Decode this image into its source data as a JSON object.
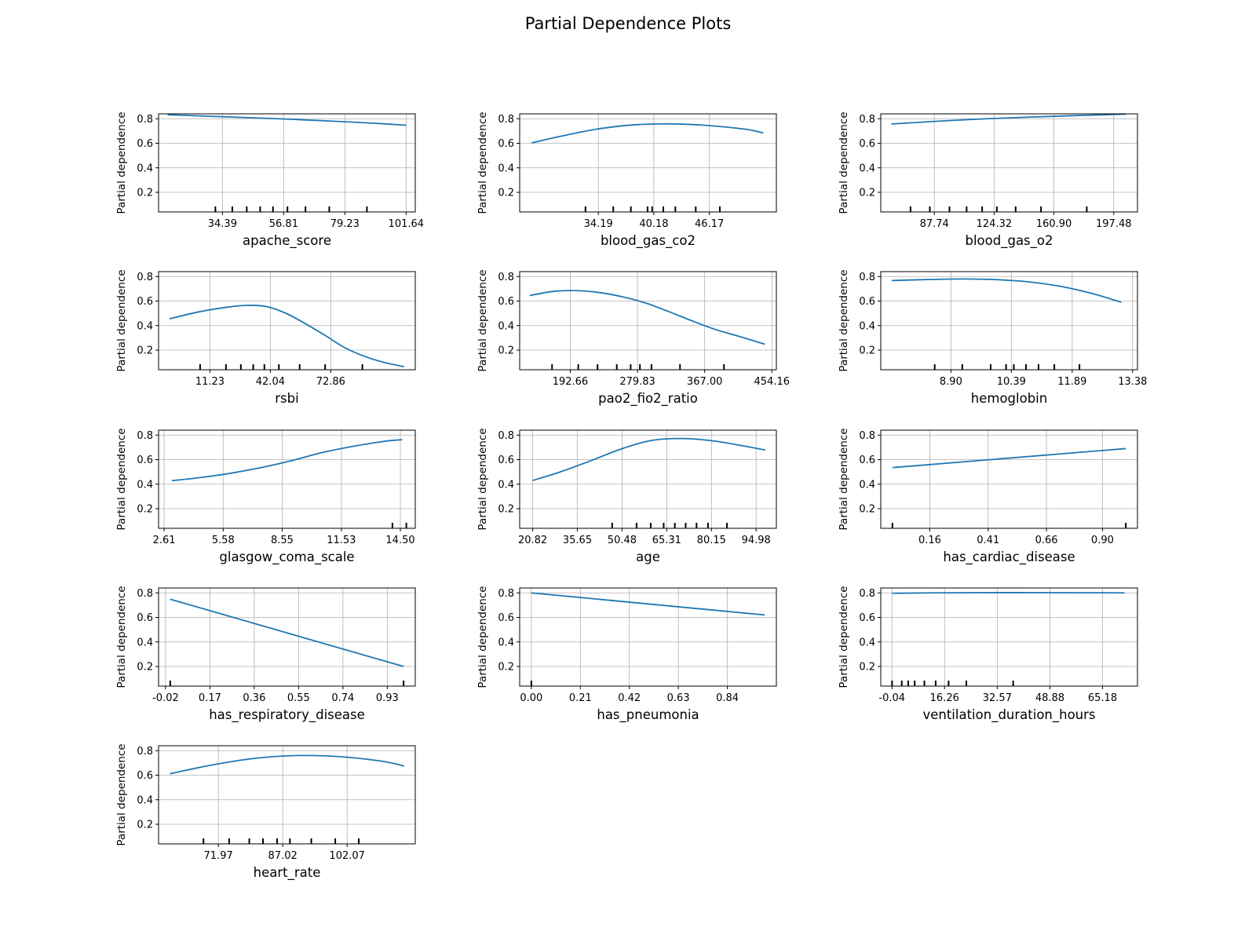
{
  "title": "Partial Dependence Plots",
  "ylabel": "Partial dependence",
  "colors": {
    "line": "#1f77b4",
    "grid": "#b0b0b0",
    "axis": "#000000"
  },
  "chart_data": [
    {
      "type": "line",
      "xlabel": "apache_score",
      "ylabel": "Partial dependence",
      "xlim": [
        11.0,
        105.0
      ],
      "ylim": [
        0.04,
        0.84
      ],
      "yticks": [
        0.2,
        0.4,
        0.6,
        0.8
      ],
      "xticks": [
        34.39,
        56.81,
        79.23,
        101.64
      ],
      "xtick_labels": [
        "34.39",
        "56.81",
        "79.23",
        "101.64"
      ],
      "deciles": [
        31.8,
        38.0,
        43.3,
        48.2,
        52.9,
        58.2,
        64.8,
        73.5,
        87.3
      ],
      "x": [
        14.3,
        30.0,
        45.0,
        60.0,
        75.0,
        90.0,
        101.64
      ],
      "y": [
        0.833,
        0.82,
        0.808,
        0.795,
        0.78,
        0.763,
        0.747
      ]
    },
    {
      "type": "line",
      "xlabel": "blood_gas_co2",
      "ylabel": "Partial dependence",
      "xlim": [
        25.7,
        53.4
      ],
      "ylim": [
        0.04,
        0.84
      ],
      "yticks": [
        0.2,
        0.4,
        0.6,
        0.8
      ],
      "xticks": [
        34.19,
        40.18,
        46.17
      ],
      "xtick_labels": [
        "34.19",
        "40.18",
        "46.17"
      ],
      "deciles": [
        32.8,
        35.8,
        37.7,
        39.5,
        40.0,
        41.2,
        42.5,
        44.7,
        47.3
      ],
      "x": [
        26.99,
        30.0,
        34.0,
        38.0,
        42.0,
        46.0,
        50.0,
        52.0
      ],
      "y": [
        0.603,
        0.655,
        0.715,
        0.75,
        0.758,
        0.745,
        0.715,
        0.685
      ]
    },
    {
      "type": "line",
      "xlabel": "blood_gas_o2",
      "ylabel": "Partial dependence",
      "xlim": [
        55.0,
        212.0
      ],
      "ylim": [
        0.04,
        0.84
      ],
      "yticks": [
        0.2,
        0.4,
        0.6,
        0.8
      ],
      "xticks": [
        87.74,
        124.32,
        160.9,
        197.48
      ],
      "xtick_labels": [
        "87.74",
        "124.32",
        "160.90",
        "197.48"
      ],
      "deciles": [
        73.2,
        85.0,
        97.0,
        107.5,
        117.0,
        126.0,
        137.5,
        153.0,
        181.0
      ],
      "x": [
        61.5,
        90.0,
        120.0,
        150.0,
        180.0,
        205.0
      ],
      "y": [
        0.757,
        0.78,
        0.8,
        0.815,
        0.828,
        0.838
      ]
    },
    {
      "type": "line",
      "xlabel": "rsbi",
      "ylabel": "Partial dependence",
      "xlim": [
        -15.0,
        116.0
      ],
      "ylim": [
        0.04,
        0.84
      ],
      "yticks": [
        0.2,
        0.4,
        0.6,
        0.8
      ],
      "xticks": [
        11.23,
        42.04,
        72.86
      ],
      "xtick_labels": [
        "11.23",
        "42.04",
        "72.86"
      ],
      "deciles": [
        6.2,
        19.4,
        27.0,
        33.3,
        39.0,
        46.4,
        57.0,
        70.0,
        89.0
      ],
      "x": [
        -9.4,
        5.0,
        20.0,
        30.0,
        40.0,
        50.0,
        60.0,
        70.0,
        80.0,
        90.0,
        100.0,
        110.3
      ],
      "y": [
        0.455,
        0.51,
        0.55,
        0.565,
        0.555,
        0.5,
        0.415,
        0.32,
        0.22,
        0.15,
        0.1,
        0.065
      ]
    },
    {
      "type": "line",
      "xlabel": "pao2_fio2_ratio",
      "ylabel": "Partial dependence",
      "xlim": [
        127.0,
        460.0
      ],
      "ylim": [
        0.04,
        0.84
      ],
      "yticks": [
        0.2,
        0.4,
        0.6,
        0.8
      ],
      "xticks": [
        192.66,
        279.83,
        367.0,
        454.16
      ],
      "xtick_labels": [
        "192.66",
        "279.83",
        "367.00",
        "454.16"
      ],
      "deciles": [
        169.0,
        203.0,
        228.0,
        253.0,
        271.0,
        283.0,
        298.0,
        335.0,
        392.0
      ],
      "x": [
        140.0,
        170.0,
        200.0,
        230.0,
        260.0,
        290.0,
        320.0,
        350.0,
        380.0,
        410.0,
        445.0
      ],
      "y": [
        0.645,
        0.678,
        0.685,
        0.67,
        0.635,
        0.585,
        0.515,
        0.44,
        0.37,
        0.315,
        0.248
      ]
    },
    {
      "type": "line",
      "xlabel": "hemoglobin",
      "ylabel": "Partial dependence",
      "xlim": [
        7.17,
        13.5
      ],
      "ylim": [
        0.04,
        0.84
      ],
      "yticks": [
        0.2,
        0.4,
        0.6,
        0.8
      ],
      "xticks": [
        8.9,
        10.39,
        11.89,
        13.38
      ],
      "xtick_labels": [
        "8.90",
        "10.39",
        "11.89",
        "13.38"
      ],
      "deciles": [
        8.5,
        9.18,
        9.88,
        10.26,
        10.45,
        10.75,
        11.06,
        11.45,
        12.07
      ],
      "x": [
        7.44,
        8.3,
        9.2,
        10.0,
        10.8,
        11.6,
        12.4,
        13.1
      ],
      "y": [
        0.767,
        0.775,
        0.78,
        0.775,
        0.757,
        0.72,
        0.66,
        0.59
      ]
    },
    {
      "type": "line",
      "xlabel": "glasgow_coma_scale",
      "ylabel": "Partial dependence",
      "xlim": [
        2.33,
        15.25
      ],
      "ylim": [
        0.04,
        0.84
      ],
      "yticks": [
        0.2,
        0.4,
        0.6,
        0.8
      ],
      "xticks": [
        2.61,
        5.58,
        8.55,
        11.53,
        14.5
      ],
      "xtick_labels": [
        "2.61",
        "5.58",
        "8.55",
        "11.53",
        "14.50"
      ],
      "deciles": [
        14.1,
        14.8
      ],
      "x": [
        3.0,
        4.5,
        6.0,
        7.5,
        9.0,
        10.5,
        12.0,
        13.5,
        14.2,
        14.6
      ],
      "y": [
        0.428,
        0.455,
        0.49,
        0.535,
        0.59,
        0.655,
        0.705,
        0.745,
        0.758,
        0.762
      ]
    },
    {
      "type": "line",
      "xlabel": "age",
      "ylabel": "Partial dependence",
      "xlim": [
        16.5,
        101.7
      ],
      "ylim": [
        0.04,
        0.84
      ],
      "yticks": [
        0.2,
        0.4,
        0.6,
        0.8
      ],
      "xticks": [
        20.82,
        35.65,
        50.48,
        65.31,
        80.15,
        94.98
      ],
      "xtick_labels": [
        "20.82",
        "35.65",
        "50.48",
        "65.31",
        "80.15",
        "94.98"
      ],
      "deciles": [
        47.2,
        55.3,
        60.0,
        64.3,
        68.0,
        71.6,
        75.2,
        79.0,
        85.3
      ],
      "x": [
        20.82,
        30.0,
        40.0,
        50.0,
        60.0,
        70.0,
        80.0,
        90.0,
        98.0
      ],
      "y": [
        0.43,
        0.5,
        0.59,
        0.685,
        0.755,
        0.772,
        0.755,
        0.715,
        0.678
      ]
    },
    {
      "type": "line",
      "xlabel": "has_cardiac_disease",
      "ylabel": "Partial dependence",
      "xlim": [
        -0.05,
        1.05
      ],
      "ylim": [
        0.04,
        0.84
      ],
      "yticks": [
        0.2,
        0.4,
        0.6,
        0.8
      ],
      "xticks": [
        0.16,
        0.41,
        0.66,
        0.9
      ],
      "xtick_labels": [
        "0.16",
        "0.41",
        "0.66",
        "0.90"
      ],
      "deciles": [
        0.0,
        1.0
      ],
      "x": [
        0.0,
        1.0
      ],
      "y": [
        0.535,
        0.69
      ]
    },
    {
      "type": "line",
      "xlabel": "has_respiratory_disease",
      "ylabel": "Partial dependence",
      "xlim": [
        -0.05,
        1.05
      ],
      "ylim": [
        0.04,
        0.84
      ],
      "yticks": [
        0.2,
        0.4,
        0.6,
        0.8
      ],
      "xticks": [
        -0.02,
        0.17,
        0.36,
        0.55,
        0.74,
        0.93
      ],
      "xtick_labels": [
        "-0.02",
        "0.17",
        "0.36",
        "0.55",
        "0.74",
        "0.93"
      ],
      "deciles": [
        0.0,
        1.0
      ],
      "x": [
        0.0,
        1.0
      ],
      "y": [
        0.748,
        0.2
      ]
    },
    {
      "type": "line",
      "xlabel": "has_pneumonia",
      "ylabel": "Partial dependence",
      "xlim": [
        -0.05,
        1.05
      ],
      "ylim": [
        0.04,
        0.84
      ],
      "yticks": [
        0.2,
        0.4,
        0.6,
        0.8
      ],
      "xticks": [
        0.0,
        0.21,
        0.42,
        0.63,
        0.84
      ],
      "xtick_labels": [
        "0.00",
        "0.21",
        "0.42",
        "0.63",
        "0.84"
      ],
      "deciles": [
        0.0
      ],
      "x": [
        0.0,
        1.0
      ],
      "y": [
        0.8,
        0.62
      ]
    },
    {
      "type": "line",
      "xlabel": "ventilation_duration_hours",
      "ylabel": "Partial dependence",
      "xlim": [
        -3.5,
        76.0
      ],
      "ylim": [
        0.04,
        0.84
      ],
      "yticks": [
        0.2,
        0.4,
        0.6,
        0.8
      ],
      "xticks": [
        -0.04,
        16.26,
        32.57,
        48.88,
        65.18
      ],
      "xtick_labels": [
        "-0.04",
        "16.26",
        "32.57",
        "48.88",
        "65.18"
      ],
      "deciles": [
        0.0,
        3.0,
        5.0,
        7.0,
        10.0,
        13.5,
        17.5,
        23.0,
        37.5
      ],
      "x": [
        0.0,
        20.0,
        40.0,
        60.0,
        72.0
      ],
      "y": [
        0.797,
        0.801,
        0.802,
        0.801,
        0.8
      ]
    },
    {
      "type": "line",
      "xlabel": "heart_rate",
      "ylabel": "Partial dependence",
      "xlim": [
        58.0,
        118.0
      ],
      "ylim": [
        0.04,
        0.84
      ],
      "yticks": [
        0.2,
        0.4,
        0.6,
        0.8
      ],
      "xticks": [
        71.97,
        87.02,
        102.07
      ],
      "xtick_labels": [
        "71.97",
        "87.02",
        "102.07"
      ],
      "deciles": [
        68.5,
        74.5,
        79.2,
        82.4,
        85.7,
        88.7,
        93.7,
        99.3,
        104.8
      ],
      "x": [
        60.7,
        70.0,
        80.0,
        90.0,
        100.0,
        110.0,
        115.4
      ],
      "y": [
        0.612,
        0.68,
        0.735,
        0.76,
        0.752,
        0.715,
        0.675
      ]
    }
  ]
}
